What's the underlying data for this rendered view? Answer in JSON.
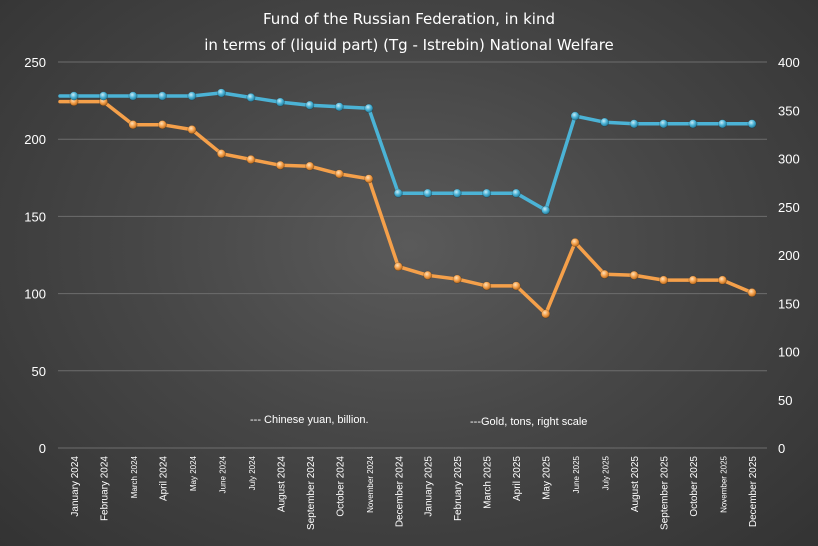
{
  "chart_data": {
    "type": "line",
    "title_lines": [
      "Fund of the Russian Federation, in kind",
      "in terms of (liquid part) (Tg - Istrebin) National Welfare"
    ],
    "categories": [
      "January 2024",
      "February 2024",
      "March 2024",
      "April 2024",
      "May 2024",
      "June 2024",
      "July 2024",
      "August 2024",
      "September 2024",
      "October 2024",
      "November 2024",
      "December 2024",
      "January 2025",
      "February 2025",
      "March 2025",
      "April 2025",
      "May 2025",
      "June 2025",
      "July 2025",
      "August 2025",
      "September 2025",
      "October 2025",
      "November 2025",
      "December 2025"
    ],
    "left_axis": {
      "min": 0,
      "max": 250,
      "ticks": [
        0,
        50,
        100,
        150,
        200,
        250
      ]
    },
    "right_axis": {
      "min": 0,
      "max": 400,
      "ticks": [
        0,
        50,
        100,
        150,
        200,
        250,
        300,
        350,
        400
      ]
    },
    "series": [
      {
        "name": "Chinese yuan, billion.",
        "legend_label": "--- Chinese yuan, billion.",
        "axis": "left",
        "color": "#4bb3d6",
        "values": [
          228,
          228,
          228,
          228,
          228,
          230,
          227,
          224,
          222,
          221,
          220,
          165,
          165,
          165,
          165,
          165,
          154,
          215,
          211,
          210,
          210,
          210,
          210,
          210
        ]
      },
      {
        "name": "Gold, tons, right scale",
        "legend_label": "---Gold, tons, right scale",
        "axis": "right",
        "color": "#f5a04a",
        "values": [
          359,
          359,
          335,
          335,
          330,
          305,
          299,
          293,
          292,
          284,
          279,
          188,
          179,
          175,
          168,
          168,
          139,
          213,
          180,
          179,
          174,
          174,
          174,
          161
        ]
      }
    ]
  }
}
